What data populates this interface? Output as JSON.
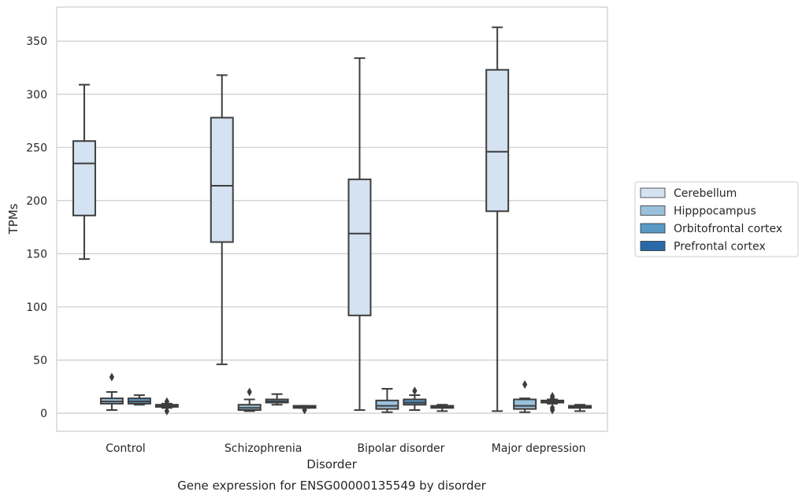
{
  "chart_data": {
    "type": "box",
    "title": "Gene expression for ENSG00000135549 by disorder",
    "xlabel": "Disorder",
    "ylabel": "TPMs",
    "ylim": [
      -17,
      382
    ],
    "yticks": [
      0,
      50,
      100,
      150,
      200,
      250,
      300,
      350
    ],
    "grid": true,
    "legend_position": "right",
    "categories": [
      "Control",
      "Schizophrenia",
      "Bipolar disorder",
      "Major depression"
    ],
    "series": [
      {
        "name": "Cerebellum",
        "color": "#d4e2f1",
        "boxes": [
          {
            "whisker_low": 145,
            "q1": 186,
            "median": 235,
            "q3": 256,
            "whisker_high": 309,
            "outliers": []
          },
          {
            "whisker_low": 46,
            "q1": 161,
            "median": 214,
            "q3": 278,
            "whisker_high": 318,
            "outliers": []
          },
          {
            "whisker_low": 3,
            "q1": 92,
            "median": 169,
            "q3": 220,
            "whisker_high": 334,
            "outliers": []
          },
          {
            "whisker_low": 2,
            "q1": 190,
            "median": 246,
            "q3": 323,
            "whisker_high": 363,
            "outliers": []
          }
        ]
      },
      {
        "name": "Hipppocampus",
        "color": "#9ac1dc",
        "boxes": [
          {
            "whisker_low": 3,
            "q1": 9,
            "median": 11,
            "q3": 14,
            "whisker_high": 20,
            "outliers": [
              34
            ]
          },
          {
            "whisker_low": 2,
            "q1": 3,
            "median": 5,
            "q3": 8,
            "whisker_high": 13,
            "outliers": [
              20
            ]
          },
          {
            "whisker_low": 1,
            "q1": 4,
            "median": 7,
            "q3": 12,
            "whisker_high": 23,
            "outliers": []
          },
          {
            "whisker_low": 1,
            "q1": 4,
            "median": 7,
            "q3": 13,
            "whisker_high": 14,
            "outliers": [
              27
            ]
          }
        ]
      },
      {
        "name": "Orbitofrontal cortex",
        "color": "#5899c6",
        "boxes": [
          {
            "whisker_low": 8,
            "q1": 9,
            "median": 11,
            "q3": 14,
            "whisker_high": 17,
            "outliers": []
          },
          {
            "whisker_low": 8,
            "q1": 10,
            "median": 11,
            "q3": 13,
            "whisker_high": 18,
            "outliers": []
          },
          {
            "whisker_low": 3,
            "q1": 8,
            "median": 10,
            "q3": 13,
            "whisker_high": 17,
            "outliers": [
              21
            ]
          },
          {
            "whisker_low": 9,
            "q1": 10,
            "median": 11,
            "q3": 12,
            "whisker_high": 13,
            "outliers": [
              16,
              14,
              5,
              3
            ]
          }
        ]
      },
      {
        "name": "Prefrontal cortex",
        "color": "#2869a9",
        "boxes": [
          {
            "whisker_low": 5,
            "q1": 6,
            "median": 7,
            "q3": 8,
            "whisker_high": 9,
            "outliers": [
              11,
              9,
              2
            ]
          },
          {
            "whisker_low": 5,
            "q1": 5,
            "median": 6,
            "q3": 7,
            "whisker_high": 7,
            "outliers": [
              3
            ]
          },
          {
            "whisker_low": 2,
            "q1": 5,
            "median": 6,
            "q3": 7,
            "whisker_high": 8,
            "outliers": []
          },
          {
            "whisker_low": 2,
            "q1": 5,
            "median": 6,
            "q3": 7,
            "whisker_high": 8,
            "outliers": []
          }
        ]
      }
    ]
  }
}
